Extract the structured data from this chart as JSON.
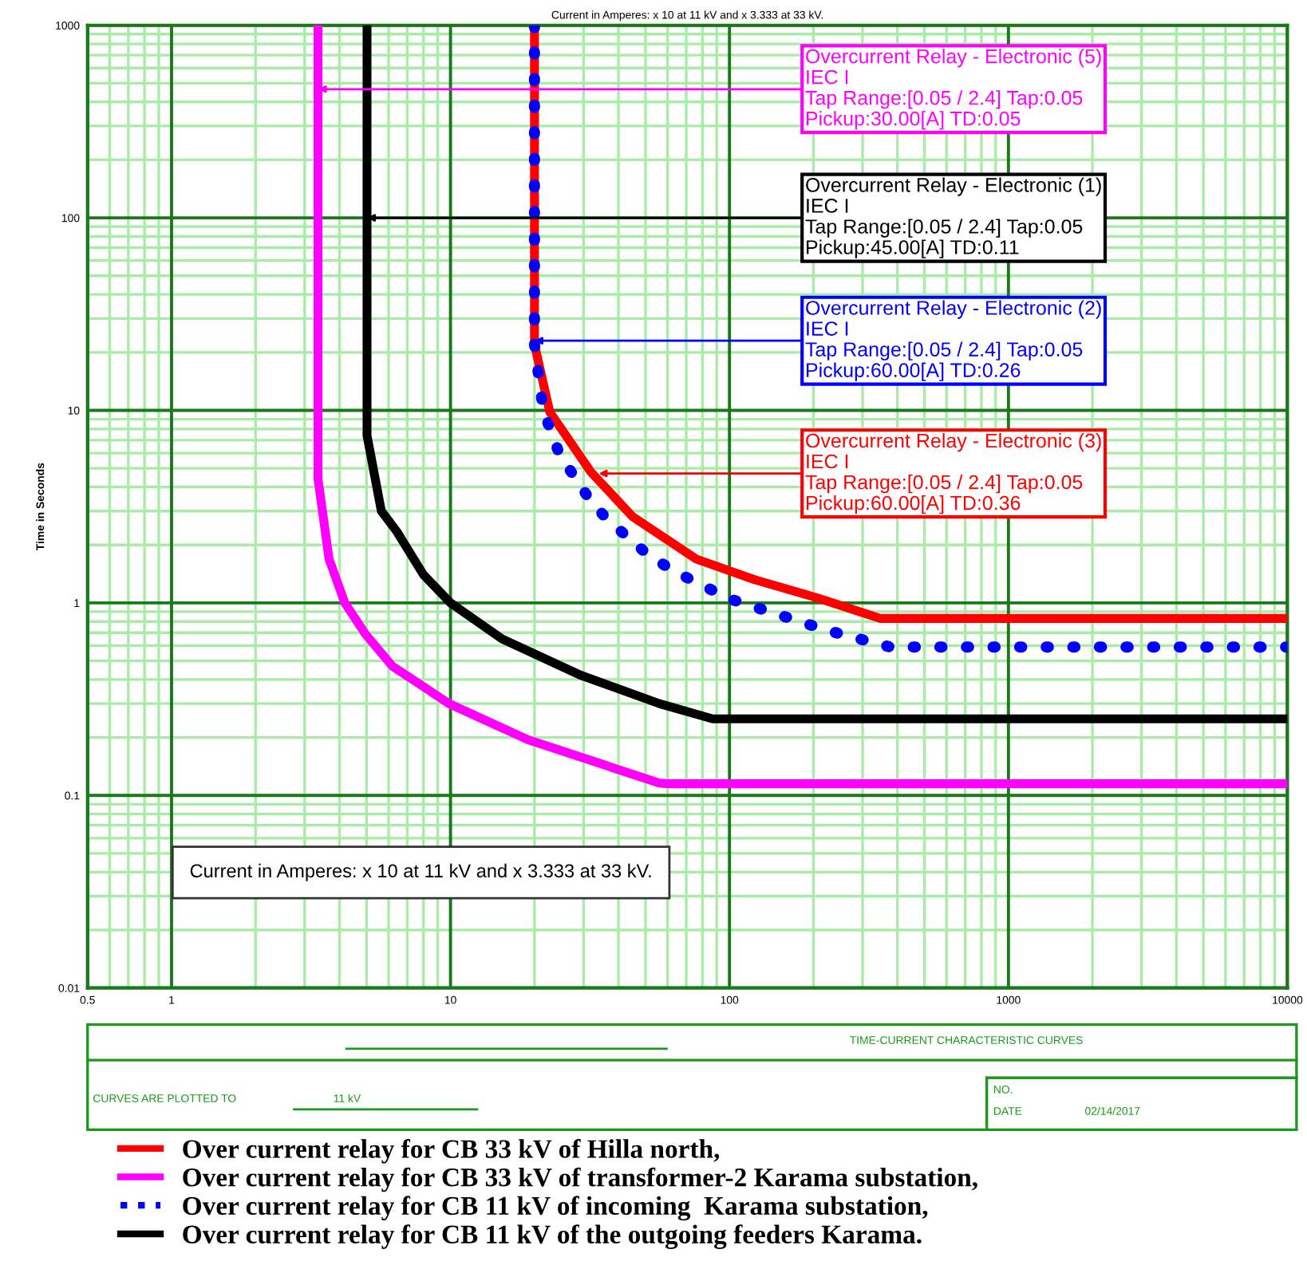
{
  "chart_data": {
    "type": "line",
    "title": "Current in Amperes: x 10 at 11 kV and x 3.333 at 33 kV.",
    "ylabel": "Time in Seconds",
    "log": "xy",
    "xlim": [
      0.5,
      10000
    ],
    "xticks": [
      0.5,
      {
        "value": 0.6,
        "label": null
      },
      {
        "value": 0.7,
        "label": null
      },
      {
        "value": 0.8,
        "label": null
      },
      {
        "value": 0.9,
        "label": null
      },
      1,
      {
        "value": 2,
        "label": null
      },
      {
        "value": 3,
        "label": null
      },
      {
        "value": 4,
        "label": null
      },
      {
        "value": 5,
        "label": null
      },
      {
        "value": 6,
        "label": null
      },
      {
        "value": 7,
        "label": null
      },
      {
        "value": 8,
        "label": null
      },
      {
        "value": 9,
        "label": null
      },
      10,
      {
        "value": 20,
        "label": null
      },
      {
        "value": 30,
        "label": null
      },
      {
        "value": 40,
        "label": null
      },
      {
        "value": 50,
        "label": null
      },
      {
        "value": 60,
        "label": null
      },
      {
        "value": 70,
        "label": null
      },
      {
        "value": 80,
        "label": null
      },
      {
        "value": 90,
        "label": null
      },
      100,
      {
        "value": 200,
        "label": null
      },
      {
        "value": 300,
        "label": null
      },
      {
        "value": 400,
        "label": null
      },
      {
        "value": 500,
        "label": null
      },
      {
        "value": 600,
        "label": null
      },
      {
        "value": 700,
        "label": null
      },
      {
        "value": 800,
        "label": null
      },
      {
        "value": 900,
        "label": null
      },
      1000,
      {
        "value": 2000,
        "label": null
      },
      {
        "value": 3000,
        "label": null
      },
      {
        "value": 4000,
        "label": null
      },
      {
        "value": 5000,
        "label": null
      },
      {
        "value": 6000,
        "label": null
      },
      {
        "value": 7000,
        "label": null
      },
      {
        "value": 8000,
        "label": null
      },
      {
        "value": 9000,
        "label": null
      },
      10000
    ],
    "ylim": [
      0.01,
      1000
    ],
    "yticks": [
      0.01,
      {
        "value": 0.02,
        "label": null
      },
      {
        "value": 0.03,
        "label": null
      },
      {
        "value": 0.04,
        "label": null
      },
      {
        "value": 0.05,
        "label": null
      },
      {
        "value": 0.06,
        "label": null
      },
      {
        "value": 0.07,
        "label": null
      },
      {
        "value": 0.08,
        "label": null
      },
      {
        "value": 0.09,
        "label": null
      },
      0.1,
      {
        "value": 0.2,
        "label": null
      },
      {
        "value": 0.3,
        "label": null
      },
      {
        "value": 0.4,
        "label": null
      },
      {
        "value": 0.5,
        "label": null
      },
      {
        "value": 0.6,
        "label": null
      },
      {
        "value": 0.7,
        "label": null
      },
      {
        "value": 0.8,
        "label": null
      },
      {
        "value": 0.9,
        "label": null
      },
      1,
      {
        "value": 2,
        "label": null
      },
      {
        "value": 3,
        "label": null
      },
      {
        "value": 4,
        "label": null
      },
      {
        "value": 5,
        "label": null
      },
      {
        "value": 6,
        "label": null
      },
      {
        "value": 7,
        "label": null
      },
      {
        "value": 8,
        "label": null
      },
      {
        "value": 9,
        "label": null
      },
      10,
      {
        "value": 20,
        "label": null
      },
      {
        "value": 30,
        "label": null
      },
      {
        "value": 40,
        "label": null
      },
      {
        "value": 50,
        "label": null
      },
      {
        "value": 60,
        "label": null
      },
      {
        "value": 70,
        "label": null
      },
      {
        "value": 80,
        "label": null
      },
      {
        "value": 90,
        "label": null
      },
      100,
      {
        "value": 200,
        "label": null
      },
      {
        "value": 300,
        "label": null
      },
      {
        "value": 400,
        "label": null
      },
      {
        "value": 500,
        "label": null
      },
      {
        "value": 600,
        "label": null
      },
      {
        "value": 700,
        "label": null
      },
      {
        "value": 800,
        "label": null
      },
      {
        "value": 900,
        "label": null
      },
      1000
    ],
    "grid": true,
    "legend": "bottom",
    "series": [
      {
        "name": "Over current relay for CB 33 kV of Hilla north,",
        "color": "#ff0000",
        "line_style": "solid",
        "x": [
          20,
          20,
          22.7,
          31.8,
          45,
          76,
          123,
          207,
          348,
          10000
        ],
        "values": [
          1000,
          22,
          9.8,
          4.8,
          2.8,
          1.69,
          1.32,
          1.06,
          0.83,
          0.83
        ]
      },
      {
        "name": "Over current relay for CB 33 kV of transformer-2 Karama substation,",
        "color": "#ff00ff",
        "line_style": "solid",
        "x": [
          3.35,
          3.35,
          3.67,
          4.18,
          4.95,
          6.18,
          9.87,
          18.9,
          56,
          60,
          10000
        ],
        "values": [
          1000,
          4.4,
          1.69,
          1.0,
          0.69,
          0.47,
          0.3,
          0.195,
          0.116,
          0.115,
          0.115
        ]
      },
      {
        "name": "Over current relay for CB 11 kV of incoming  Karama substation,",
        "color": "#0000ff",
        "line_style": "dotted",
        "x": [
          20,
          20,
          21.5,
          24.6,
          31.3,
          36.3,
          51.5,
          64,
          100,
          224,
          377,
          10000
        ],
        "values": [
          1000,
          22,
          10,
          5.9,
          3.5,
          2.73,
          1.76,
          1.45,
          1.05,
          0.72,
          0.59,
          0.59
        ]
      },
      {
        "name": "Over current relay for CB 11 kV of the outgoing feeders Karama.",
        "color": "#000000",
        "line_style": "solid",
        "x": [
          5.02,
          5.02,
          5.65,
          6.43,
          8.0,
          10,
          15.3,
          29.4,
          56,
          87,
          10000
        ],
        "values": [
          1000,
          7.4,
          3.0,
          2.34,
          1.4,
          1.0,
          0.65,
          0.42,
          0.3,
          0.25,
          0.25
        ]
      }
    ],
    "annotations": [
      {
        "text": "Overcurrent Relay - Electronic (5)\nIEC I\nTap Range:[0.05 / 2.4] Tap:0.05\nPickup:30.00[A] TD:0.05",
        "x": 3.35,
        "y": 466
      },
      {
        "text": "Overcurrent Relay - Electronic (1)\nIEC I\nTap Range:[0.05 / 2.4] Tap:0.05\nPickup:45.00[A] TD:0.11",
        "x": 5.02,
        "y": 100
      },
      {
        "text": "Overcurrent Relay - Electronic (2)\nIEC I\nTap Range:[0.05 / 2.4] Tap:0.05\nPickup:60.00[A] TD:0.26",
        "x": 20,
        "y": 23
      },
      {
        "text": "Overcurrent Relay - Electronic (3)\nIEC I\nTap Range:[0.05 / 2.4] Tap:0.05\nPickup:60.00[A] TD:0.36",
        "x": 34,
        "y": 4.7
      },
      "Current in Amperes: x 10 at 11 kV and x 3.333 at 33 kV.",
      "TIME-CURRENT CHARACTERISTIC CURVES",
      "CURVES ARE PLOTTED TO",
      "11 kV",
      "NO.",
      "DATE",
      "02/14/2017"
    ]
  }
}
